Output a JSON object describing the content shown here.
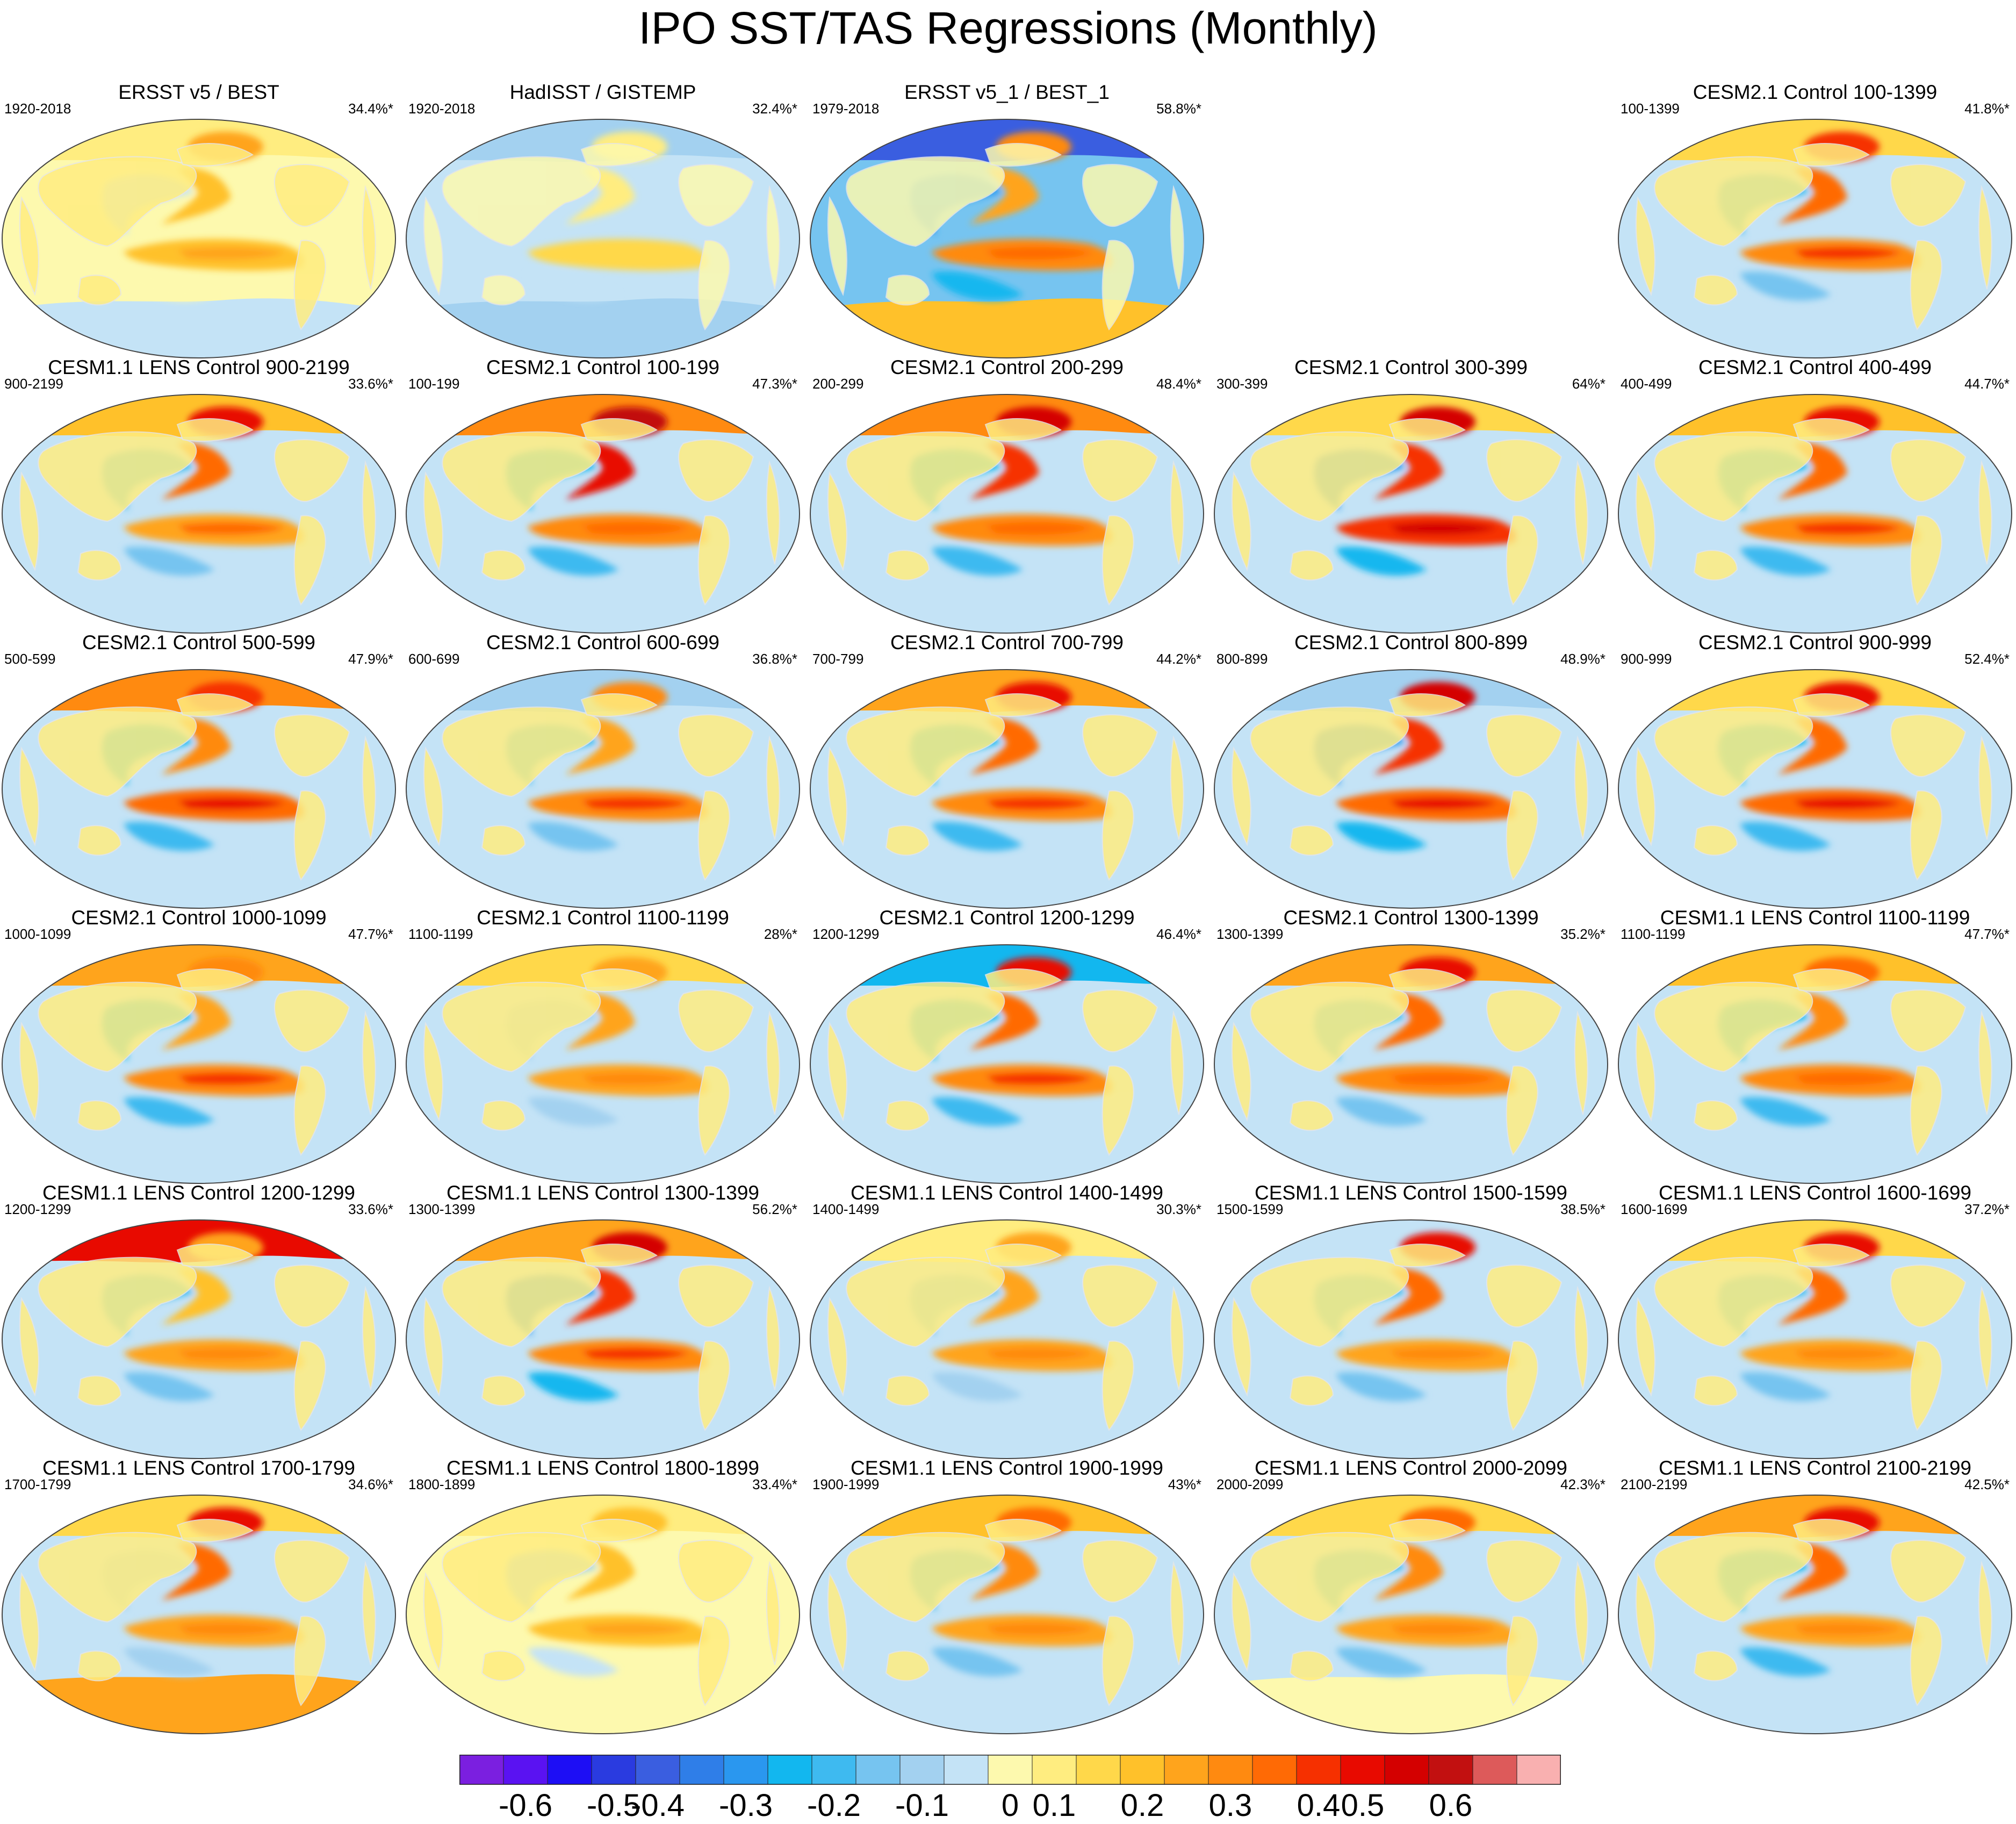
{
  "title": "IPO SST/TAS Regressions (Monthly)",
  "colors": {
    "bins": [
      "#7b1fe0",
      "#5a12f2",
      "#1d0ef5",
      "#2a3be0",
      "#3a5ee0",
      "#2f7ee8",
      "#2a97ef",
      "#12b7ef",
      "#3ebaf0",
      "#76c4f0",
      "#a3d1f0",
      "#c4e3f6",
      "#fdf9ae",
      "#ffed80",
      "#ffd84a",
      "#ffc12a",
      "#ffa41c",
      "#ff8a10",
      "#ff6a05",
      "#f63000",
      "#e80a00",
      "#d40000",
      "#c21010",
      "#dd5a5a",
      "#f9b0b0"
    ],
    "land_outline": "#e6e6e6",
    "map_outline": "#444444"
  },
  "chart_data": {
    "type": "heatmap",
    "colorbar": {
      "ticks": [
        "-0.6",
        "-0.5",
        "-0.4",
        "-0.3",
        "-0.2",
        "-0.1",
        "0",
        "0.1",
        "0.2",
        "0.3",
        "0.4",
        "0.5",
        "0.6"
      ],
      "tick_values": [
        -0.6,
        -0.5,
        -0.4,
        -0.3,
        -0.2,
        -0.1,
        0,
        0.1,
        0.2,
        0.3,
        0.4,
        0.5,
        0.6
      ],
      "range": [
        -0.7,
        0.7
      ],
      "bin_count": 25
    },
    "panels": [
      {
        "title": "ERSST v5 / BEST",
        "period": "1920-2018",
        "pct": "34.4%*",
        "row": 0,
        "col": 0,
        "n_anom": 0.2,
        "tropics": 0.18,
        "ring": -0.02,
        "north": 0.05,
        "south": -0.04,
        "ocean_bg": -0.02
      },
      {
        "title": "HadISST / GISTEMP",
        "period": "1920-2018",
        "pct": "32.4%*",
        "row": 0,
        "col": 1,
        "n_anom": 0.05,
        "tropics": 0.1,
        "ring": -0.05,
        "north": -0.12,
        "south": -0.1,
        "ocean_bg": -0.08
      },
      {
        "title": "ERSST v5_1 / BEST_1",
        "period": "1979-2018",
        "pct": "58.8%*",
        "row": 0,
        "col": 2,
        "n_anom": 0.3,
        "tropics": 0.26,
        "ring": -0.2,
        "north": -0.45,
        "south": 0.15,
        "ocean_bg": -0.15
      },
      {
        "title": "CESM2.1 Control 100-1399",
        "period": "100-1399",
        "pct": "41.8%*",
        "row": 0,
        "col": 4,
        "n_anom": 0.4,
        "tropics": 0.28,
        "ring": -0.15,
        "north": 0.1,
        "south": -0.06,
        "ocean_bg": -0.05
      },
      {
        "title": "CESM1.1 LENS Control 900-2199",
        "period": "900-2199",
        "pct": "33.6%*",
        "row": 1,
        "col": 0,
        "n_anom": 0.42,
        "tropics": 0.24,
        "ring": -0.15,
        "north": 0.18,
        "south": -0.06,
        "ocean_bg": -0.05
      },
      {
        "title": "CESM2.1 Control 100-199",
        "period": "100-199",
        "pct": "47.3%*",
        "row": 1,
        "col": 1,
        "n_anom": 0.55,
        "tropics": 0.26,
        "ring": -0.18,
        "north": 0.3,
        "south": -0.04,
        "ocean_bg": -0.04
      },
      {
        "title": "CESM2.1 Control 200-299",
        "period": "200-299",
        "pct": "48.4%*",
        "row": 1,
        "col": 2,
        "n_anom": 0.5,
        "tropics": 0.26,
        "ring": -0.17,
        "north": 0.28,
        "south": -0.05,
        "ocean_bg": -0.05
      },
      {
        "title": "CESM2.1 Control 300-399",
        "period": "300-399",
        "pct": "64%*",
        "row": 1,
        "col": 3,
        "n_anom": 0.48,
        "tropics": 0.38,
        "ring": -0.22,
        "north": 0.1,
        "south": -0.06,
        "ocean_bg": -0.06
      },
      {
        "title": "CESM2.1 Control 400-499",
        "period": "400-499",
        "pct": "44.7%*",
        "row": 1,
        "col": 4,
        "n_anom": 0.45,
        "tropics": 0.28,
        "ring": -0.17,
        "north": 0.15,
        "south": -0.05,
        "ocean_bg": -0.05
      },
      {
        "title": "CESM2.1 Control 500-599",
        "period": "500-599",
        "pct": "47.9%*",
        "row": 2,
        "col": 0,
        "n_anom": 0.38,
        "tropics": 0.32,
        "ring": -0.18,
        "north": 0.3,
        "south": -0.03,
        "ocean_bg": -0.04
      },
      {
        "title": "CESM2.1 Control 600-699",
        "period": "600-699",
        "pct": "36.8%*",
        "row": 2,
        "col": 1,
        "n_anom": 0.3,
        "tropics": 0.28,
        "ring": -0.15,
        "north": -0.1,
        "south": -0.05,
        "ocean_bg": -0.05
      },
      {
        "title": "CESM2.1 Control 700-799",
        "period": "700-799",
        "pct": "44.2%*",
        "row": 2,
        "col": 2,
        "n_anom": 0.45,
        "tropics": 0.28,
        "ring": -0.17,
        "north": 0.2,
        "south": -0.04,
        "ocean_bg": -0.05
      },
      {
        "title": "CESM2.1 Control 800-899",
        "period": "800-899",
        "pct": "48.9%*",
        "row": 2,
        "col": 3,
        "n_anom": 0.52,
        "tropics": 0.34,
        "ring": -0.2,
        "north": -0.1,
        "south": -0.04,
        "ocean_bg": -0.04
      },
      {
        "title": "CESM2.1 Control 900-999",
        "period": "900-999",
        "pct": "52.4%*",
        "row": 2,
        "col": 4,
        "n_anom": 0.45,
        "tropics": 0.34,
        "ring": -0.19,
        "north": 0.1,
        "south": -0.04,
        "ocean_bg": -0.04
      },
      {
        "title": "CESM2.1 Control 1000-1099",
        "period": "1000-1099",
        "pct": "47.7%*",
        "row": 3,
        "col": 0,
        "n_anom": 0.3,
        "tropics": 0.3,
        "ring": -0.17,
        "north": 0.2,
        "south": -0.03,
        "ocean_bg": -0.04
      },
      {
        "title": "CESM2.1 Control 1100-1199",
        "period": "1100-1199",
        "pct": "28%*",
        "row": 3,
        "col": 1,
        "n_anom": 0.25,
        "tropics": 0.22,
        "ring": -0.08,
        "north": 0.1,
        "south": -0.03,
        "ocean_bg": -0.03
      },
      {
        "title": "CESM2.1 Control 1200-1299",
        "period": "1200-1299",
        "pct": "46.4%*",
        "row": 3,
        "col": 2,
        "n_anom": 0.45,
        "tropics": 0.3,
        "ring": -0.18,
        "north": -0.3,
        "south": -0.04,
        "ocean_bg": -0.05
      },
      {
        "title": "CESM2.1 Control 1300-1399",
        "period": "1300-1399",
        "pct": "35.2%*",
        "row": 3,
        "col": 3,
        "n_anom": 0.42,
        "tropics": 0.26,
        "ring": -0.15,
        "north": 0.2,
        "south": -0.04,
        "ocean_bg": -0.04
      },
      {
        "title": "CESM1.1 LENS Control 1100-1199",
        "period": "1100-1199",
        "pct": "47.7%*",
        "row": 3,
        "col": 4,
        "n_anom": 0.35,
        "tropics": 0.26,
        "ring": -0.17,
        "north": 0.15,
        "south": -0.04,
        "ocean_bg": -0.05
      },
      {
        "title": "CESM1.1 LENS Control 1200-1299",
        "period": "1200-1299",
        "pct": "33.6%*",
        "row": 4,
        "col": 0,
        "n_anom": 0.2,
        "tropics": 0.2,
        "ring": -0.15,
        "north": 0.45,
        "south": -0.04,
        "ocean_bg": -0.05
      },
      {
        "title": "CESM1.1 LENS Control 1300-1399",
        "period": "1300-1399",
        "pct": "56.2%*",
        "row": 4,
        "col": 1,
        "n_anom": 0.52,
        "tropics": 0.3,
        "ring": -0.2,
        "north": 0.2,
        "south": -0.04,
        "ocean_bg": -0.04
      },
      {
        "title": "CESM1.1 LENS Control 1400-1499",
        "period": "1400-1499",
        "pct": "30.3%*",
        "row": 4,
        "col": 2,
        "n_anom": 0.25,
        "tropics": 0.2,
        "ring": -0.1,
        "north": 0.05,
        "south": -0.03,
        "ocean_bg": -0.03
      },
      {
        "title": "CESM1.1 LENS Control 1500-1599",
        "period": "1500-1599",
        "pct": "38.5%*",
        "row": 4,
        "col": 3,
        "n_anom": 0.42,
        "tropics": 0.22,
        "ring": -0.15,
        "north": -0.05,
        "south": -0.03,
        "ocean_bg": -0.04
      },
      {
        "title": "CESM1.1 LENS Control 1600-1699",
        "period": "1600-1699",
        "pct": "37.2%*",
        "row": 4,
        "col": 4,
        "n_anom": 0.45,
        "tropics": 0.22,
        "ring": -0.15,
        "north": 0.1,
        "south": -0.03,
        "ocean_bg": -0.04
      },
      {
        "title": "CESM1.1 LENS Control 1700-1799",
        "period": "1700-1799",
        "pct": "34.6%*",
        "row": 5,
        "col": 0,
        "n_anom": 0.45,
        "tropics": 0.2,
        "ring": -0.08,
        "north": 0.1,
        "south": 0.2,
        "ocean_bg": -0.03
      },
      {
        "title": "CESM1.1 LENS Control 1800-1899",
        "period": "1800-1899",
        "pct": "33.4%*",
        "row": 5,
        "col": 1,
        "n_anom": 0.18,
        "tropics": 0.18,
        "ring": -0.06,
        "north": 0.05,
        "south": -0.02,
        "ocean_bg": -0.02
      },
      {
        "title": "CESM1.1 LENS Control 1900-1999",
        "period": "1900-1999",
        "pct": "43%*",
        "row": 5,
        "col": 2,
        "n_anom": 0.35,
        "tropics": 0.22,
        "ring": -0.15,
        "north": 0.15,
        "south": -0.03,
        "ocean_bg": -0.04
      },
      {
        "title": "CESM1.1 LENS Control 2000-2099",
        "period": "2000-2099",
        "pct": "42.3%*",
        "row": 5,
        "col": 3,
        "n_anom": 0.35,
        "tropics": 0.2,
        "ring": -0.15,
        "north": 0.1,
        "south": 0.02,
        "ocean_bg": -0.03
      },
      {
        "title": "CESM1.1 LENS Control 2100-2199",
        "period": "2100-2199",
        "pct": "42.5%*",
        "row": 5,
        "col": 4,
        "n_anom": 0.45,
        "tropics": 0.22,
        "ring": -0.16,
        "north": 0.25,
        "south": -0.03,
        "ocean_bg": -0.04
      }
    ]
  }
}
